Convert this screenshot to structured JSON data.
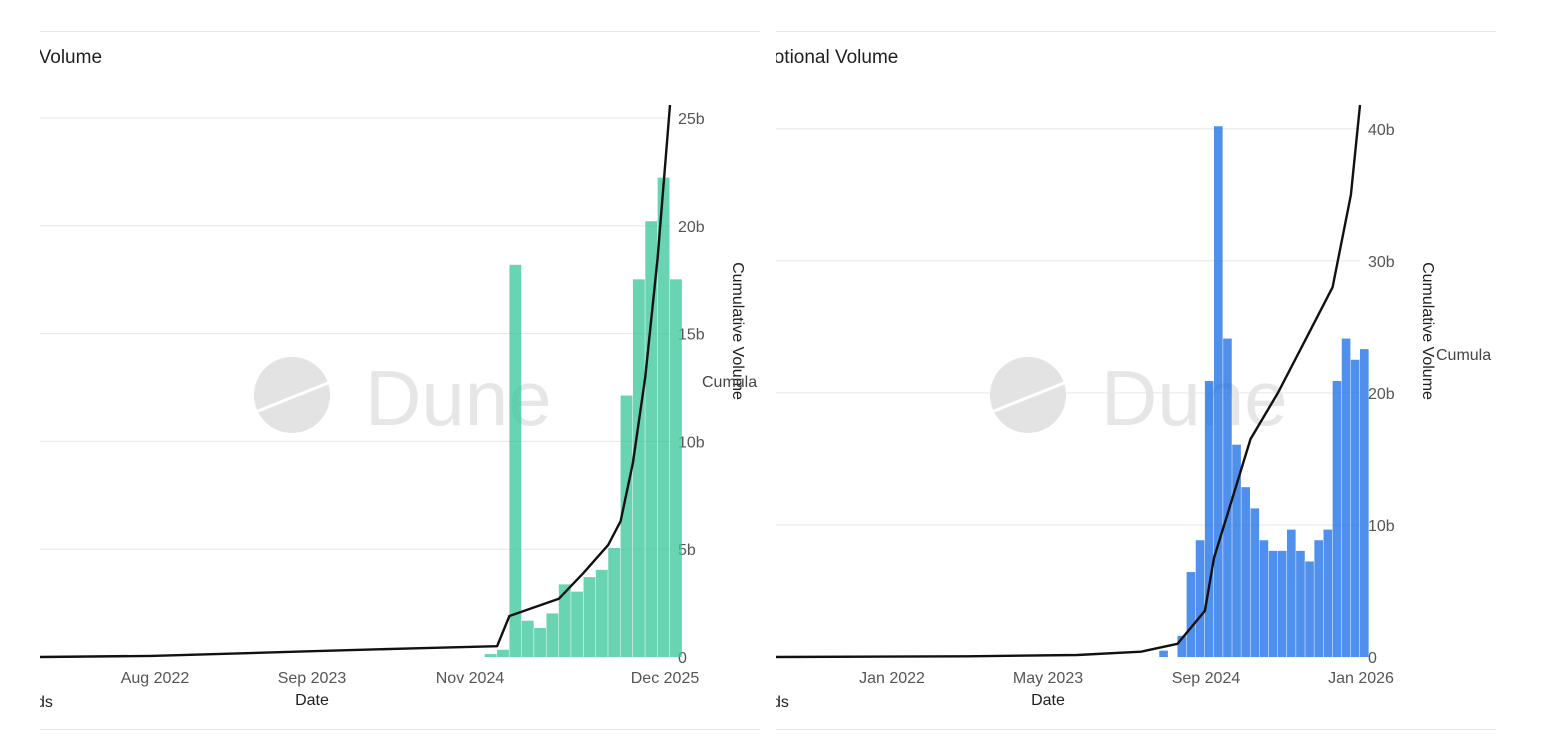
{
  "colors": {
    "teal": "#3cc79a",
    "blue": "#1a6fe8",
    "line": "#111111",
    "grid": "#e6e6e6",
    "watermark": "#e3e3e3"
  },
  "watermark": {
    "text": "Dune",
    "icon": "dune-logo-icon"
  },
  "chart_data": [
    {
      "type": "bar",
      "title": "nal Volume",
      "xlabel": "Date",
      "ylabel": "Cumulative Volume",
      "legend_label": "Cumula",
      "footer": "boards",
      "bar_color": "#3cc79a",
      "x_ticks": [
        "Aug 2022",
        "Sep 2023",
        "Nov 2024",
        "Dec 2025"
      ],
      "y_ticks": [
        "0",
        "5b",
        "10b",
        "15b",
        "20b",
        "25b"
      ],
      "ylim": [
        0,
        25.6
      ],
      "bar_ylim": [
        0,
        3.8
      ],
      "x_range": [
        "2021-09",
        "2025-12"
      ],
      "cumulative_series": [
        {
          "x": "2021-09",
          "y": 0
        },
        {
          "x": "2022-06",
          "y": 0.05
        },
        {
          "x": "2023-06",
          "y": 0.25
        },
        {
          "x": "2024-03",
          "y": 0.4
        },
        {
          "x": "2024-10",
          "y": 0.5
        },
        {
          "x": "2024-11",
          "y": 1.9
        },
        {
          "x": "2025-01",
          "y": 2.3
        },
        {
          "x": "2025-03",
          "y": 2.7
        },
        {
          "x": "2025-05",
          "y": 3.9
        },
        {
          "x": "2025-07",
          "y": 5.2
        },
        {
          "x": "2025-08",
          "y": 6.3
        },
        {
          "x": "2025-09",
          "y": 9.0
        },
        {
          "x": "2025-10",
          "y": 13.0
        },
        {
          "x": "2025-11",
          "y": 18.5
        },
        {
          "x": "2025-12",
          "y": 25.6
        }
      ],
      "bar_series": [
        {
          "x": "2024-09",
          "y": 0.02
        },
        {
          "x": "2024-10",
          "y": 0.05
        },
        {
          "x": "2024-11",
          "y": 2.7
        },
        {
          "x": "2024-12",
          "y": 0.25
        },
        {
          "x": "2025-01",
          "y": 0.2
        },
        {
          "x": "2025-02",
          "y": 0.3
        },
        {
          "x": "2025-03",
          "y": 0.5
        },
        {
          "x": "2025-04",
          "y": 0.45
        },
        {
          "x": "2025-05",
          "y": 0.55
        },
        {
          "x": "2025-06",
          "y": 0.6
        },
        {
          "x": "2025-07",
          "y": 0.75
        },
        {
          "x": "2025-08",
          "y": 1.8
        },
        {
          "x": "2025-09",
          "y": 2.6
        },
        {
          "x": "2025-10",
          "y": 3.0
        },
        {
          "x": "2025-11",
          "y": 3.3
        },
        {
          "x": "2025-12",
          "y": 2.6
        }
      ]
    },
    {
      "type": "bar",
      "title": "Notional Volume",
      "xlabel": "Date",
      "ylabel": "Cumulative Volume",
      "legend_label": "Cumula",
      "footer": "boards",
      "bar_color": "#1a6fe8",
      "x_ticks": [
        "Jan 2022",
        "May 2023",
        "Sep 2024",
        "Jan 2026"
      ],
      "y_ticks": [
        "0",
        "10b",
        "20b",
        "30b",
        "40b"
      ],
      "ylim": [
        0,
        41.8
      ],
      "bar_ylim": [
        0,
        2.6
      ],
      "x_range": [
        "2020-09",
        "2026-01"
      ],
      "cumulative_series": [
        {
          "x": "2020-09",
          "y": 0
        },
        {
          "x": "2022-06",
          "y": 0.05
        },
        {
          "x": "2023-06",
          "y": 0.15
        },
        {
          "x": "2024-01",
          "y": 0.4
        },
        {
          "x": "2024-05",
          "y": 1.0
        },
        {
          "x": "2024-08",
          "y": 3.5
        },
        {
          "x": "2024-09",
          "y": 7.5
        },
        {
          "x": "2024-11",
          "y": 12.0
        },
        {
          "x": "2025-01",
          "y": 16.5
        },
        {
          "x": "2025-04",
          "y": 20.0
        },
        {
          "x": "2025-07",
          "y": 24.0
        },
        {
          "x": "2025-10",
          "y": 28.0
        },
        {
          "x": "2025-12",
          "y": 35.0
        },
        {
          "x": "2026-01",
          "y": 41.8
        }
      ],
      "bar_series": [
        {
          "x": "2024-03",
          "y": 0.03
        },
        {
          "x": "2024-05",
          "y": 0.1
        },
        {
          "x": "2024-06",
          "y": 0.4
        },
        {
          "x": "2024-07",
          "y": 0.55
        },
        {
          "x": "2024-08",
          "y": 1.3
        },
        {
          "x": "2024-09",
          "y": 2.5
        },
        {
          "x": "2024-10",
          "y": 1.5
        },
        {
          "x": "2024-11",
          "y": 1.0
        },
        {
          "x": "2024-12",
          "y": 0.8
        },
        {
          "x": "2025-01",
          "y": 0.7
        },
        {
          "x": "2025-02",
          "y": 0.55
        },
        {
          "x": "2025-03",
          "y": 0.5
        },
        {
          "x": "2025-04",
          "y": 0.5
        },
        {
          "x": "2025-05",
          "y": 0.6
        },
        {
          "x": "2025-06",
          "y": 0.5
        },
        {
          "x": "2025-07",
          "y": 0.45
        },
        {
          "x": "2025-08",
          "y": 0.55
        },
        {
          "x": "2025-09",
          "y": 0.6
        },
        {
          "x": "2025-10",
          "y": 1.3
        },
        {
          "x": "2025-11",
          "y": 1.5
        },
        {
          "x": "2025-12",
          "y": 1.4
        },
        {
          "x": "2026-01",
          "y": 1.45
        }
      ]
    }
  ]
}
